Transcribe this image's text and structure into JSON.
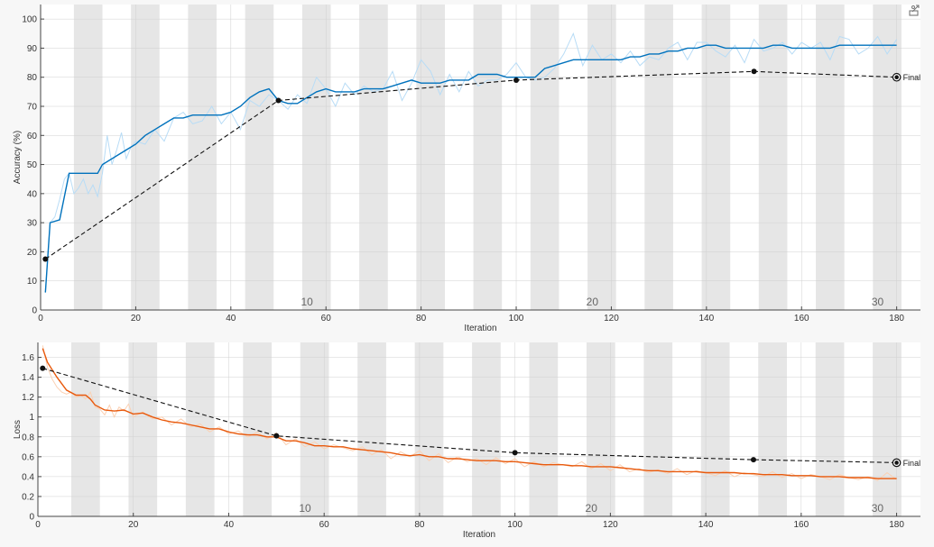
{
  "export_icon": "export-icon",
  "colors": {
    "accuracy_smoothed": "#0072bd",
    "accuracy_raw": "#b8dcf6",
    "loss_smoothed": "#e8590c",
    "loss_raw": "#fbd1b4",
    "validation": "#111111",
    "epoch_band": "#e6e6e6",
    "plot_background": "#ffffff"
  },
  "chart_data": [
    {
      "type": "line",
      "xlabel": "Iteration",
      "ylabel": "Accuracy (%)",
      "xlim": [
        0,
        185
      ],
      "ylim": [
        0,
        105
      ],
      "xticks": [
        0,
        20,
        40,
        60,
        80,
        100,
        120,
        140,
        160,
        180
      ],
      "yticks": [
        0,
        10,
        20,
        30,
        40,
        50,
        60,
        70,
        80,
        90,
        100
      ],
      "epoch_boundaries": [
        0,
        7,
        13,
        19,
        25,
        31,
        37,
        43,
        49,
        55,
        61,
        67,
        73,
        79,
        85,
        91,
        97,
        103,
        109,
        115,
        121,
        127,
        133,
        139,
        145,
        151,
        157,
        163,
        169,
        175,
        181
      ],
      "epoch_labels": [
        {
          "x": 56,
          "label": "10"
        },
        {
          "x": 116,
          "label": "20"
        },
        {
          "x": 176,
          "label": "30"
        }
      ],
      "grid": true,
      "series": [
        {
          "role": "training-smoothed",
          "x": [
            1,
            2,
            4,
            6,
            8,
            10,
            11,
            12,
            13,
            16,
            18,
            20,
            22,
            24,
            26,
            28,
            30,
            32,
            34,
            36,
            38,
            40,
            42,
            44,
            46,
            48,
            50,
            52,
            54,
            56,
            58,
            60,
            62,
            64,
            66,
            68,
            70,
            72,
            74,
            76,
            78,
            80,
            82,
            84,
            86,
            88,
            90,
            92,
            94,
            96,
            98,
            100,
            102,
            104,
            106,
            108,
            110,
            112,
            114,
            116,
            118,
            120,
            122,
            124,
            126,
            128,
            130,
            132,
            134,
            136,
            138,
            140,
            142,
            144,
            146,
            148,
            150,
            152,
            154,
            156,
            158,
            160,
            162,
            164,
            166,
            168,
            170,
            172,
            174,
            176,
            178,
            180
          ],
          "y": [
            6,
            30,
            31,
            47,
            47,
            47,
            47,
            47,
            50,
            53,
            55,
            57,
            60,
            62,
            64,
            66,
            66,
            67,
            67,
            67,
            67,
            68,
            70,
            73,
            75,
            76,
            72,
            71,
            71,
            73,
            75,
            76,
            75,
            75,
            75,
            76,
            76,
            76,
            77,
            78,
            79,
            78,
            78,
            78,
            79,
            79,
            79,
            81,
            81,
            81,
            80,
            80,
            80,
            80,
            83,
            84,
            85,
            86,
            86,
            86,
            86,
            86,
            86,
            87,
            87,
            88,
            88,
            89,
            89,
            90,
            90,
            91,
            91,
            90,
            90,
            90,
            90,
            90,
            91,
            91,
            90,
            90,
            90,
            90,
            90,
            91,
            91,
            91,
            91,
            91,
            91,
            91
          ]
        },
        {
          "role": "training-raw",
          "x": [
            1,
            2,
            3,
            4,
            5,
            6,
            7,
            8,
            9,
            10,
            11,
            12,
            13,
            14,
            15,
            16,
            17,
            18,
            19,
            20,
            22,
            24,
            26,
            28,
            30,
            32,
            34,
            36,
            38,
            40,
            42,
            44,
            46,
            48,
            50,
            52,
            54,
            56,
            58,
            60,
            62,
            64,
            66,
            68,
            70,
            72,
            74,
            76,
            78,
            80,
            82,
            84,
            86,
            88,
            90,
            92,
            94,
            96,
            98,
            100,
            102,
            104,
            106,
            108,
            110,
            112,
            114,
            116,
            118,
            120,
            122,
            124,
            126,
            128,
            130,
            132,
            134,
            136,
            138,
            140,
            142,
            144,
            146,
            148,
            150,
            152,
            154,
            156,
            158,
            160,
            162,
            164,
            166,
            168,
            170,
            172,
            174,
            176,
            178,
            180
          ],
          "y": [
            6,
            30,
            32,
            38,
            45,
            47,
            40,
            42,
            45,
            40,
            43,
            39,
            47,
            60,
            50,
            55,
            61,
            52,
            56,
            58,
            57,
            62,
            58,
            66,
            68,
            64,
            65,
            70,
            64,
            68,
            62,
            72,
            70,
            74,
            72,
            69,
            74,
            71,
            80,
            76,
            70,
            78,
            74,
            77,
            75,
            76,
            82,
            72,
            78,
            86,
            82,
            74,
            81,
            75,
            82,
            77,
            79,
            79,
            81,
            85,
            80,
            79,
            80,
            83,
            88,
            95,
            84,
            91,
            86,
            88,
            85,
            89,
            84,
            87,
            86,
            90,
            92,
            86,
            92,
            92,
            89,
            87,
            91,
            85,
            93,
            89,
            90,
            92,
            88,
            92,
            90,
            92,
            86,
            94,
            93,
            88,
            90,
            94,
            88,
            93
          ]
        },
        {
          "role": "validation",
          "x": [
            1,
            50,
            100,
            150,
            180
          ],
          "y": [
            17.5,
            72,
            79,
            82,
            80
          ]
        }
      ],
      "annotations": [
        {
          "x": 180,
          "y": 80,
          "text": "Final"
        }
      ]
    },
    {
      "type": "line",
      "xlabel": "Iteration",
      "ylabel": "Loss",
      "xlim": [
        0,
        185
      ],
      "ylim": [
        0,
        1.75
      ],
      "xticks": [
        0,
        20,
        40,
        60,
        80,
        100,
        120,
        140,
        160,
        180
      ],
      "yticks": [
        0,
        0.2,
        0.4,
        0.6,
        0.8,
        1,
        1.2,
        1.4,
        1.6
      ],
      "ytick_labels": [
        "0",
        "0.2",
        "0.4",
        "0.6",
        "0.8",
        "1",
        "1.2",
        "1.4",
        "1.6"
      ],
      "epoch_boundaries": [
        0,
        7,
        13,
        19,
        25,
        31,
        37,
        43,
        49,
        55,
        61,
        67,
        73,
        79,
        85,
        91,
        97,
        103,
        109,
        115,
        121,
        127,
        133,
        139,
        145,
        151,
        157,
        163,
        169,
        175,
        181
      ],
      "epoch_labels": [
        {
          "x": 56,
          "label": "10"
        },
        {
          "x": 116,
          "label": "20"
        },
        {
          "x": 176,
          "label": "30"
        }
      ],
      "grid": true,
      "series": [
        {
          "role": "training-smoothed",
          "x": [
            1,
            2,
            4,
            6,
            8,
            10,
            11,
            12,
            14,
            16,
            18,
            20,
            22,
            24,
            26,
            28,
            30,
            32,
            34,
            36,
            38,
            40,
            42,
            44,
            46,
            48,
            50,
            52,
            54,
            56,
            58,
            60,
            62,
            64,
            66,
            68,
            70,
            72,
            74,
            76,
            78,
            80,
            82,
            84,
            86,
            88,
            90,
            92,
            94,
            96,
            98,
            100,
            102,
            104,
            106,
            108,
            110,
            112,
            114,
            116,
            118,
            120,
            122,
            124,
            126,
            128,
            130,
            132,
            134,
            136,
            138,
            140,
            142,
            144,
            146,
            148,
            150,
            152,
            154,
            156,
            158,
            160,
            162,
            164,
            166,
            168,
            170,
            172,
            174,
            176,
            178,
            180
          ],
          "y": [
            1.69,
            1.55,
            1.4,
            1.27,
            1.22,
            1.22,
            1.18,
            1.12,
            1.07,
            1.06,
            1.07,
            1.03,
            1.04,
            1.0,
            0.97,
            0.95,
            0.94,
            0.92,
            0.9,
            0.88,
            0.88,
            0.85,
            0.83,
            0.82,
            0.82,
            0.8,
            0.8,
            0.76,
            0.76,
            0.74,
            0.71,
            0.71,
            0.7,
            0.7,
            0.68,
            0.67,
            0.66,
            0.65,
            0.64,
            0.62,
            0.61,
            0.62,
            0.6,
            0.6,
            0.58,
            0.58,
            0.57,
            0.56,
            0.56,
            0.56,
            0.55,
            0.55,
            0.54,
            0.53,
            0.52,
            0.52,
            0.52,
            0.51,
            0.51,
            0.5,
            0.5,
            0.5,
            0.49,
            0.48,
            0.47,
            0.46,
            0.46,
            0.45,
            0.45,
            0.45,
            0.45,
            0.44,
            0.44,
            0.44,
            0.44,
            0.43,
            0.43,
            0.42,
            0.42,
            0.42,
            0.41,
            0.41,
            0.41,
            0.4,
            0.4,
            0.4,
            0.39,
            0.39,
            0.39,
            0.38,
            0.38,
            0.38
          ]
        },
        {
          "role": "training-raw",
          "x": [
            1,
            2,
            3,
            4,
            5,
            6,
            7,
            8,
            9,
            10,
            11,
            12,
            13,
            14,
            15,
            16,
            17,
            18,
            19,
            20,
            22,
            24,
            26,
            28,
            30,
            32,
            34,
            36,
            38,
            40,
            42,
            44,
            46,
            48,
            50,
            52,
            54,
            56,
            58,
            60,
            62,
            64,
            66,
            68,
            70,
            72,
            74,
            76,
            78,
            80,
            82,
            84,
            86,
            88,
            90,
            92,
            94,
            96,
            98,
            100,
            102,
            104,
            106,
            108,
            110,
            112,
            114,
            116,
            118,
            120,
            122,
            124,
            126,
            128,
            130,
            132,
            134,
            136,
            138,
            140,
            142,
            144,
            146,
            148,
            150,
            152,
            154,
            156,
            158,
            160,
            162,
            164,
            166,
            168,
            170,
            172,
            174,
            176,
            178,
            180
          ],
          "y": [
            1.72,
            1.5,
            1.38,
            1.3,
            1.25,
            1.23,
            1.25,
            1.2,
            1.22,
            1.18,
            1.25,
            1.1,
            1.08,
            1.02,
            1.12,
            1.0,
            1.1,
            1.06,
            1.13,
            1.0,
            1.05,
            0.98,
            1.0,
            0.92,
            0.98,
            0.9,
            0.93,
            0.85,
            0.9,
            0.83,
            0.86,
            0.8,
            0.85,
            0.78,
            0.84,
            0.72,
            0.78,
            0.7,
            0.75,
            0.68,
            0.72,
            0.69,
            0.66,
            0.7,
            0.62,
            0.67,
            0.58,
            0.65,
            0.6,
            0.66,
            0.56,
            0.63,
            0.54,
            0.6,
            0.55,
            0.58,
            0.52,
            0.59,
            0.53,
            0.58,
            0.5,
            0.55,
            0.5,
            0.54,
            0.52,
            0.5,
            0.55,
            0.48,
            0.53,
            0.46,
            0.52,
            0.45,
            0.48,
            0.44,
            0.47,
            0.43,
            0.48,
            0.42,
            0.46,
            0.44,
            0.41,
            0.46,
            0.4,
            0.44,
            0.42,
            0.4,
            0.45,
            0.39,
            0.43,
            0.38,
            0.42,
            0.4,
            0.37,
            0.42,
            0.39,
            0.37,
            0.4,
            0.36,
            0.44,
            0.37
          ]
        },
        {
          "role": "validation",
          "x": [
            1,
            50,
            100,
            150,
            180
          ],
          "y": [
            1.49,
            0.81,
            0.64,
            0.57,
            0.54
          ]
        }
      ],
      "annotations": [
        {
          "x": 180,
          "y": 0.54,
          "text": "Final"
        }
      ]
    }
  ]
}
